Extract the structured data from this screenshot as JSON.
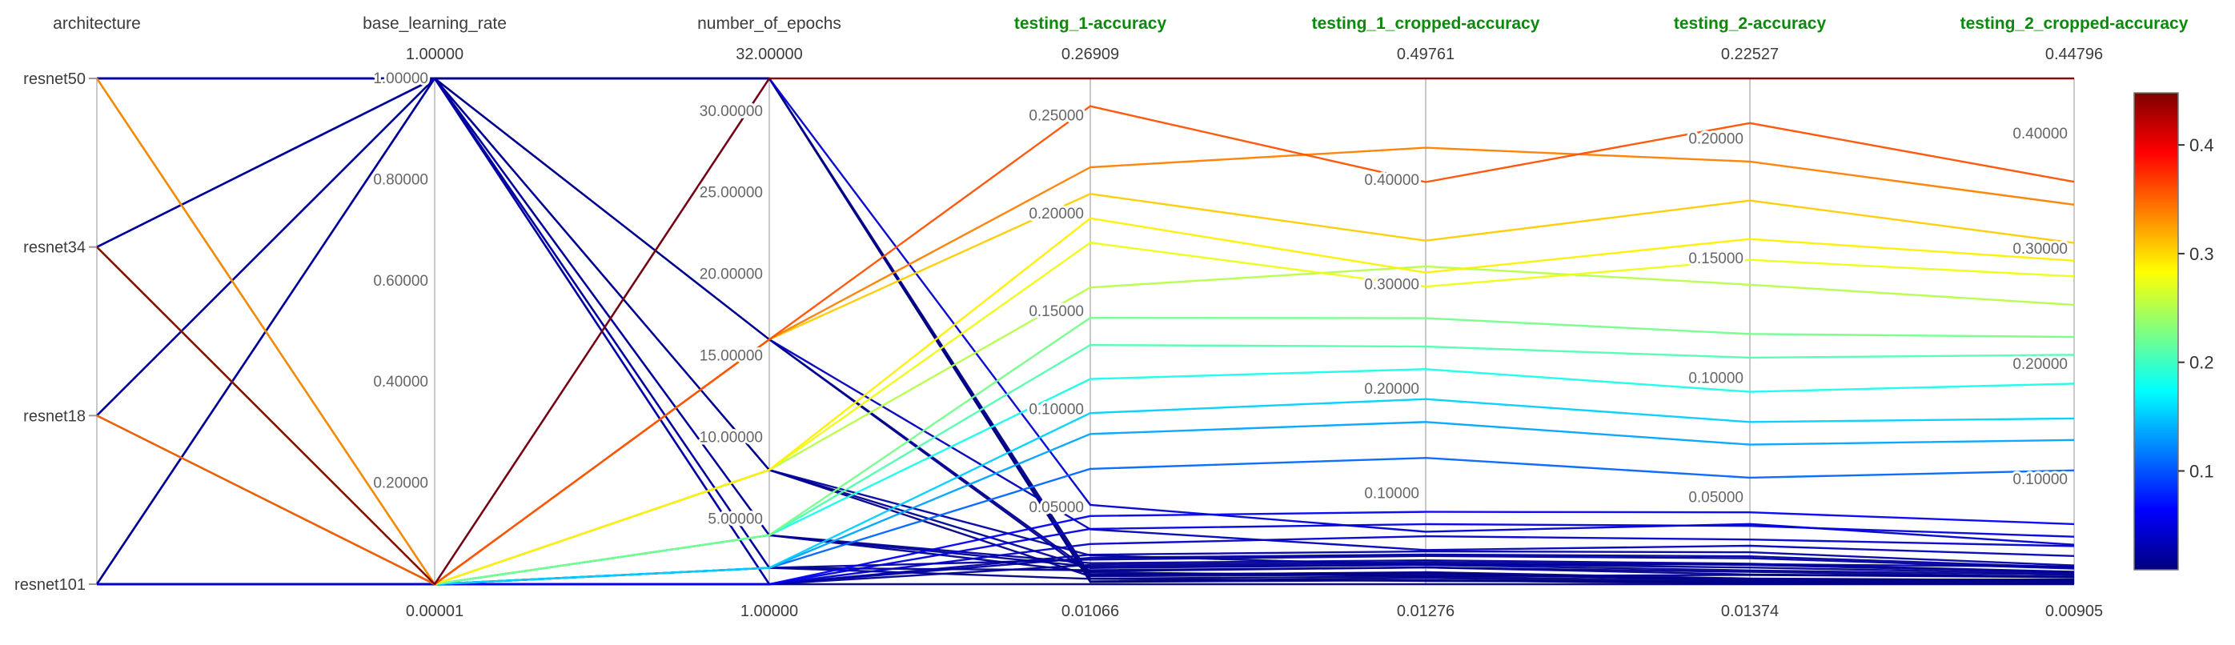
{
  "chart_data": {
    "type": "parallel_coordinates",
    "title": "",
    "style": {
      "background": "#ffffff",
      "param_title_color": "#3c3c3c",
      "metric_title_color": "#0a8a0a",
      "axis_line_color": "#c9c9c9",
      "tick_label_color": "#666666",
      "value_label_color": "#3c3c3c",
      "category_tick_color": "#999999",
      "colorbar_border_color": "#777777"
    },
    "axes": [
      {
        "name": "architecture",
        "type": "categorical",
        "metric": false,
        "categories": [
          "resnet50",
          "resnet34",
          "resnet18",
          "resnet101"
        ],
        "max_label": "",
        "min_label": "",
        "ticks": [],
        "tick_labels": []
      },
      {
        "name": "base_learning_rate",
        "type": "numeric",
        "metric": false,
        "min": 1e-05,
        "max": 1.0,
        "max_label": "1.00000",
        "min_label": "0.00001",
        "ticks": [
          0.2,
          0.4,
          0.6,
          0.8,
          1.0
        ],
        "tick_labels": [
          "0.20000",
          "0.40000",
          "0.60000",
          "0.80000",
          "1.00000"
        ]
      },
      {
        "name": "number_of_epochs",
        "type": "numeric",
        "metric": false,
        "min": 1.0,
        "max": 32.0,
        "max_label": "32.00000",
        "min_label": "1.00000",
        "ticks": [
          5,
          10,
          15,
          20,
          25,
          30
        ],
        "tick_labels": [
          "5.00000",
          "10.00000",
          "15.00000",
          "20.00000",
          "25.00000",
          "30.00000"
        ]
      },
      {
        "name": "testing_1-accuracy",
        "type": "numeric",
        "metric": true,
        "min": 0.01066,
        "max": 0.26909,
        "max_label": "0.26909",
        "min_label": "0.01066",
        "ticks": [
          0.05,
          0.1,
          0.15,
          0.2,
          0.25
        ],
        "tick_labels": [
          "0.05000",
          "0.10000",
          "0.15000",
          "0.20000",
          "0.25000"
        ]
      },
      {
        "name": "testing_1_cropped-accuracy",
        "type": "numeric",
        "metric": true,
        "min": 0.01276,
        "max": 0.49761,
        "max_label": "0.49761",
        "min_label": "0.01276",
        "ticks": [
          0.1,
          0.2,
          0.3,
          0.4
        ],
        "tick_labels": [
          "0.10000",
          "0.20000",
          "0.30000",
          "0.40000"
        ]
      },
      {
        "name": "testing_2-accuracy",
        "type": "numeric",
        "metric": true,
        "min": 0.01374,
        "max": 0.22527,
        "max_label": "0.22527",
        "min_label": "0.01374",
        "ticks": [
          0.05,
          0.1,
          0.15,
          0.2
        ],
        "tick_labels": [
          "0.05000",
          "0.10000",
          "0.15000",
          "0.20000"
        ]
      },
      {
        "name": "testing_2_cropped-accuracy",
        "type": "numeric",
        "metric": true,
        "min": 0.00905,
        "max": 0.44796,
        "max_label": "0.44796",
        "min_label": "0.00905",
        "ticks": [
          0.1,
          0.2,
          0.3,
          0.4
        ],
        "tick_labels": [
          "0.10000",
          "0.20000",
          "0.30000",
          "0.40000"
        ]
      }
    ],
    "colorbar": {
      "metric": "testing_2_cropped-accuracy",
      "colormap": "jet",
      "min": 0.00905,
      "max": 0.44796,
      "ticks": [
        0.1,
        0.2,
        0.3,
        0.4
      ],
      "tick_labels": [
        "0.1",
        "0.2",
        "0.3",
        "0.4"
      ]
    },
    "runs": [
      [
        "resnet34",
        1e-05,
        32,
        0.26909,
        0.49761,
        0.22527,
        0.44796
      ],
      [
        "resnet18",
        1e-05,
        16,
        0.2549,
        0.3983,
        0.2066,
        0.3582
      ],
      [
        "resnet50",
        1e-05,
        16,
        0.2237,
        0.4312,
        0.1905,
        0.3384
      ],
      [
        "resnet34",
        1e-05,
        16,
        0.2101,
        0.3421,
        0.1742,
        0.3052
      ],
      [
        "resnet50",
        1e-05,
        8,
        0.1976,
        0.3115,
        0.1581,
        0.2898
      ],
      [
        "resnet34",
        1e-05,
        8,
        0.1852,
        0.2981,
        0.1494,
        0.2762
      ],
      [
        "resnet18",
        1e-05,
        8,
        0.1623,
        0.3174,
        0.139,
        0.2515
      ],
      [
        "resnet50",
        1e-05,
        4,
        0.1468,
        0.2678,
        0.1184,
        0.2236
      ],
      [
        "resnet34",
        1e-05,
        4,
        0.1329,
        0.2405,
        0.1085,
        0.2081
      ],
      [
        "resnet18",
        1e-05,
        4,
        0.1155,
        0.2189,
        0.0942,
        0.1831
      ],
      [
        "resnet50",
        1e-05,
        2,
        0.0981,
        0.1902,
        0.0816,
        0.1529
      ],
      [
        "resnet34",
        1e-05,
        2,
        0.0874,
        0.1683,
        0.0721,
        0.1342
      ],
      [
        "resnet18",
        1e-05,
        2,
        0.0696,
        0.1338,
        0.0583,
        0.1078
      ],
      [
        "resnet50",
        1e-05,
        1,
        0.0455,
        0.0821,
        0.0438,
        0.0612
      ],
      [
        "resnet34",
        1e-05,
        1,
        0.0389,
        0.0703,
        0.0381,
        0.0502
      ],
      [
        "resnet18",
        1e-05,
        1,
        0.0312,
        0.0587,
        0.0324,
        0.0421
      ],
      [
        "resnet101",
        1e-05,
        32,
        0.0512,
        0.0631,
        0.0389,
        0.0433
      ],
      [
        "resnet101",
        1e-05,
        16,
        0.0387,
        0.0455,
        0.0298,
        0.0335
      ],
      [
        "resnet101",
        1e-05,
        8,
        0.0254,
        0.0311,
        0.0221,
        0.0242
      ],
      [
        "resnet101",
        1e-05,
        4,
        0.0168,
        0.0204,
        0.0176,
        0.0151
      ],
      [
        "resnet101",
        1e-05,
        2,
        0.0134,
        0.0158,
        0.0148,
        0.0118
      ],
      [
        "resnet101",
        1e-05,
        1,
        0.01066,
        0.01276,
        0.01374,
        0.00905
      ],
      [
        "resnet50",
        1.0,
        32,
        0.0152,
        0.0243,
        0.0161,
        0.0124
      ],
      [
        "resnet34",
        1.0,
        32,
        0.0135,
        0.0202,
        0.0149,
        0.0117
      ],
      [
        "resnet18",
        1.0,
        32,
        0.0121,
        0.0187,
        0.0142,
        0.0102
      ],
      [
        "resnet101",
        1.0,
        32,
        0.0118,
        0.0166,
        0.0139,
        0.0098
      ],
      [
        "resnet50",
        1.0,
        16,
        0.0173,
        0.0289,
        0.0178,
        0.0156
      ],
      [
        "resnet34",
        1.0,
        16,
        0.0158,
        0.0234,
        0.0152,
        0.0133
      ],
      [
        "resnet18",
        1.0,
        8,
        0.0189,
        0.0312,
        0.0195,
        0.0171
      ],
      [
        "resnet101",
        1.0,
        8,
        0.0147,
        0.0221,
        0.0158,
        0.0128
      ],
      [
        "resnet50",
        1.0,
        4,
        0.0214,
        0.0356,
        0.0223,
        0.0198
      ],
      [
        "resnet34",
        1.0,
        4,
        0.0196,
        0.0324,
        0.0207,
        0.0181
      ],
      [
        "resnet18",
        1.0,
        2,
        0.0232,
        0.0398,
        0.0246,
        0.0225
      ],
      [
        "resnet101",
        1.0,
        2,
        0.0178,
        0.0287,
        0.0189,
        0.0152
      ],
      [
        "resnet50",
        1.0,
        1,
        0.0257,
        0.0442,
        0.0271,
        0.0253
      ],
      [
        "resnet34",
        1.0,
        1,
        0.0241,
        0.0412,
        0.0254,
        0.0236
      ],
      [
        "resnet101",
        1.0,
        1,
        0.0205,
        0.0338,
        0.0218,
        0.0192
      ]
    ]
  }
}
